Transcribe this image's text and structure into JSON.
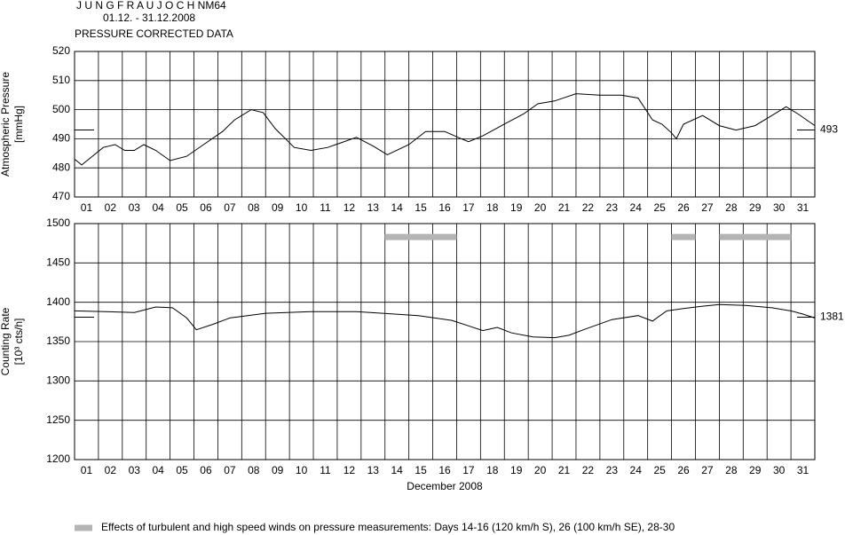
{
  "header": {
    "station": "J U N G F R A U J O C H   NM64",
    "period": "01.12. - 31.12.2008",
    "subtitle": "PRESSURE CORRECTED DATA"
  },
  "chart_data": [
    {
      "type": "line",
      "ylabel": [
        "Atmospheric Pressure",
        "[mmHg]"
      ],
      "categories": [
        "01",
        "02",
        "03",
        "04",
        "05",
        "06",
        "07",
        "08",
        "09",
        "10",
        "11",
        "12",
        "13",
        "14",
        "15",
        "16",
        "17",
        "18",
        "19",
        "20",
        "21",
        "22",
        "23",
        "24",
        "25",
        "26",
        "27",
        "28",
        "29",
        "30",
        "31"
      ],
      "xlim": [
        1,
        32
      ],
      "ylim": [
        470,
        520
      ],
      "yticks": [
        470,
        480,
        490,
        500,
        510,
        520
      ],
      "grid": true,
      "reference": 493,
      "series": [
        {
          "color": "#000000",
          "x": [
            1.0,
            1.3,
            1.6,
            2.2,
            2.7,
            3.1,
            3.5,
            3.9,
            4.4,
            5.0,
            5.7,
            6.4,
            7.2,
            7.7,
            8.4,
            8.9,
            9.4,
            10.2,
            10.9,
            11.6,
            12.8,
            13.5,
            14.1,
            15.0,
            15.7,
            16.5,
            17.2,
            17.5,
            18.1,
            19.1,
            19.8,
            20.4,
            21.1,
            22.0,
            23.0,
            23.9,
            24.6,
            25.2,
            25.6,
            26.0,
            26.2,
            26.5,
            27.3,
            28.0,
            28.7,
            29.5,
            30.2,
            30.8,
            31.3,
            32.0
          ],
          "values": [
            483,
            481,
            483,
            487,
            488,
            486,
            486,
            488,
            486,
            482.5,
            484,
            488,
            492.5,
            496.5,
            500,
            499,
            493.5,
            487,
            486,
            487,
            490.5,
            487.5,
            484.5,
            488,
            492.5,
            492.5,
            490,
            489,
            491,
            495.5,
            498.5,
            502,
            503,
            505.5,
            505,
            505,
            504,
            496.5,
            495,
            492,
            490,
            495,
            498,
            494.5,
            493,
            494.5,
            498,
            501,
            498.5,
            494.5
          ]
        }
      ]
    },
    {
      "type": "line",
      "ylabel": [
        "Counting Rate",
        "[10³ cts/h]"
      ],
      "xlabel": "December 2008",
      "categories": [
        "01",
        "02",
        "03",
        "04",
        "05",
        "06",
        "07",
        "08",
        "09",
        "10",
        "11",
        "12",
        "13",
        "14",
        "15",
        "16",
        "17",
        "18",
        "19",
        "20",
        "21",
        "22",
        "23",
        "24",
        "25",
        "26",
        "27",
        "28",
        "29",
        "30",
        "31"
      ],
      "xlim": [
        1,
        32
      ],
      "ylim": [
        1200,
        1500
      ],
      "yticks": [
        1200,
        1250,
        1300,
        1350,
        1400,
        1450,
        1500
      ],
      "grid": true,
      "reference": 1381,
      "highlight_color": "#b4b4b4",
      "highlight_level": 1483,
      "highlight_spans": [
        [
          14,
          17
        ],
        [
          26,
          27
        ],
        [
          28,
          31
        ]
      ],
      "legend_note": "Effects of turbulent and high speed winds on pressure measurements: Days 14-16 (120 km/h S), 26 (100 km/h SE), 28-30",
      "series": [
        {
          "color": "#000000",
          "x": [
            1.0,
            2.3,
            3.5,
            4.4,
            5.1,
            5.7,
            6.1,
            6.8,
            7.5,
            9.0,
            10.9,
            12.8,
            13.9,
            15.4,
            16.8,
            17.6,
            18.1,
            18.7,
            19.3,
            20.2,
            21.1,
            21.7,
            22.4,
            23.5,
            24.6,
            25.2,
            25.8,
            26.5,
            27.3,
            28.0,
            29.1,
            30.2,
            31.0,
            31.5,
            32.0
          ],
          "values": [
            1389,
            1388,
            1387,
            1394,
            1393,
            1380,
            1365,
            1372,
            1380,
            1386,
            1388,
            1388,
            1386,
            1383,
            1377,
            1369,
            1364,
            1368,
            1361,
            1356,
            1355,
            1358,
            1366,
            1378,
            1383,
            1376,
            1389,
            1392,
            1395,
            1397,
            1396,
            1393,
            1389,
            1385,
            1380
          ]
        }
      ]
    }
  ]
}
